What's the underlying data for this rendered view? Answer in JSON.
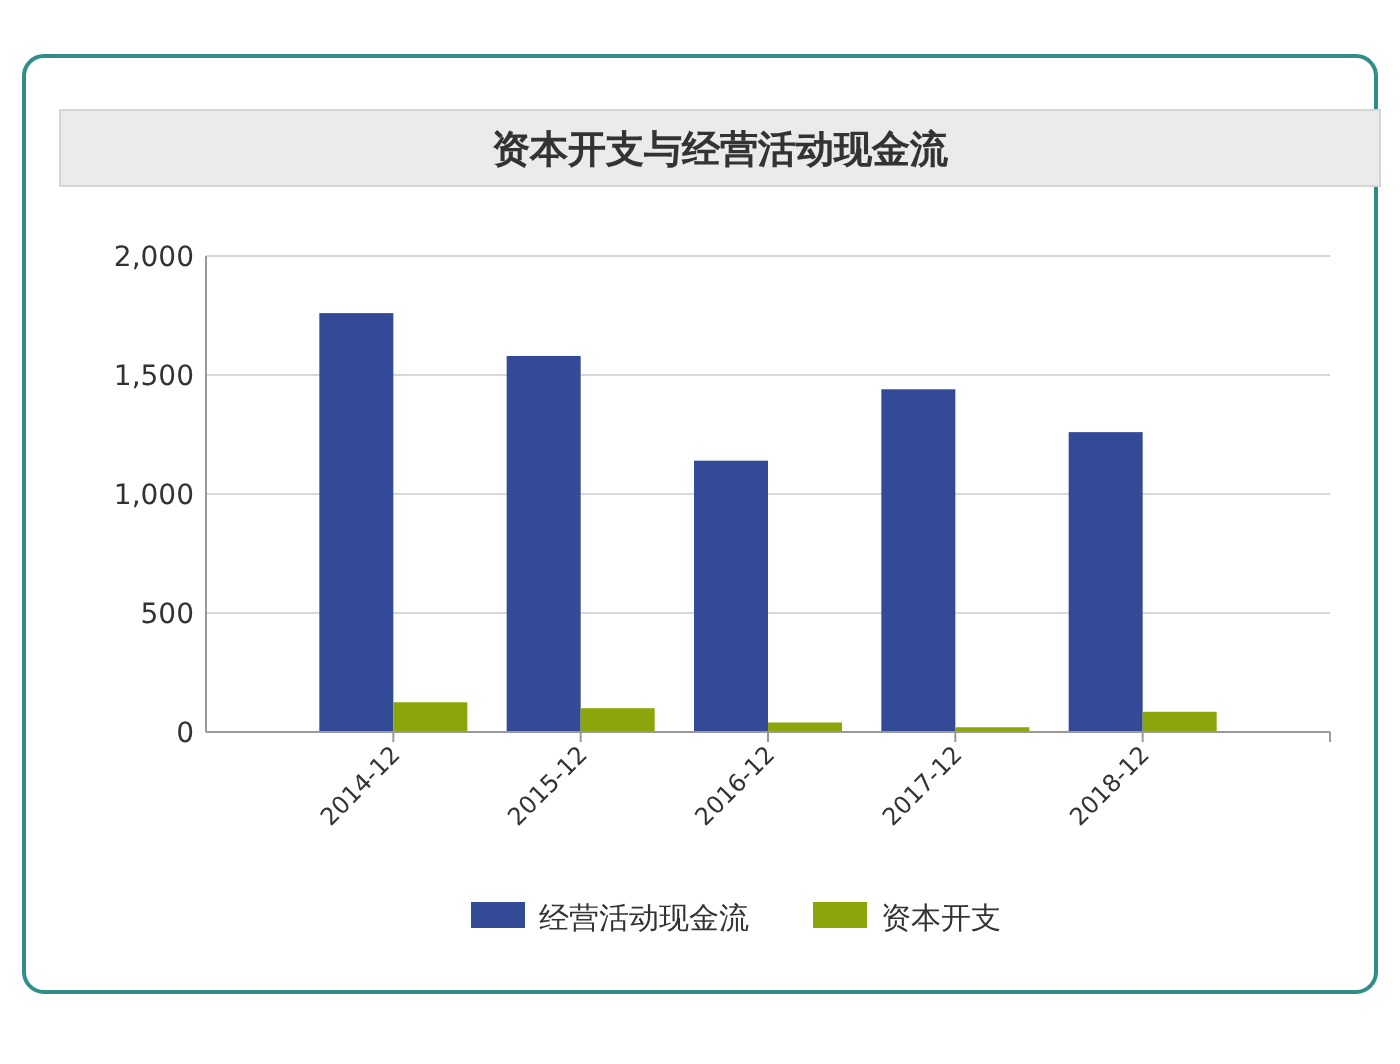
{
  "chart_data": {
    "type": "bar",
    "title": "资本开支与经营活动现金流",
    "categories": [
      "2014-12",
      "2015-12",
      "2016-12",
      "2017-12",
      "2018-12"
    ],
    "series": [
      {
        "name": "经营活动现金流",
        "color": "#334a96",
        "values": [
          1760,
          1580,
          1140,
          1440,
          1260
        ]
      },
      {
        "name": "资本开支",
        "color": "#8aa60a",
        "values": [
          125,
          100,
          40,
          20,
          85
        ]
      }
    ],
    "ylim": [
      0,
      2000
    ],
    "yticks": [
      {
        "value": 0,
        "label": "0"
      },
      {
        "value": 500,
        "label": "500"
      },
      {
        "value": 1000,
        "label": "1,000"
      },
      {
        "value": 1500,
        "label": "1,500"
      },
      {
        "value": 2000,
        "label": "2,000"
      }
    ],
    "grid": "y",
    "legend": "bottom"
  }
}
